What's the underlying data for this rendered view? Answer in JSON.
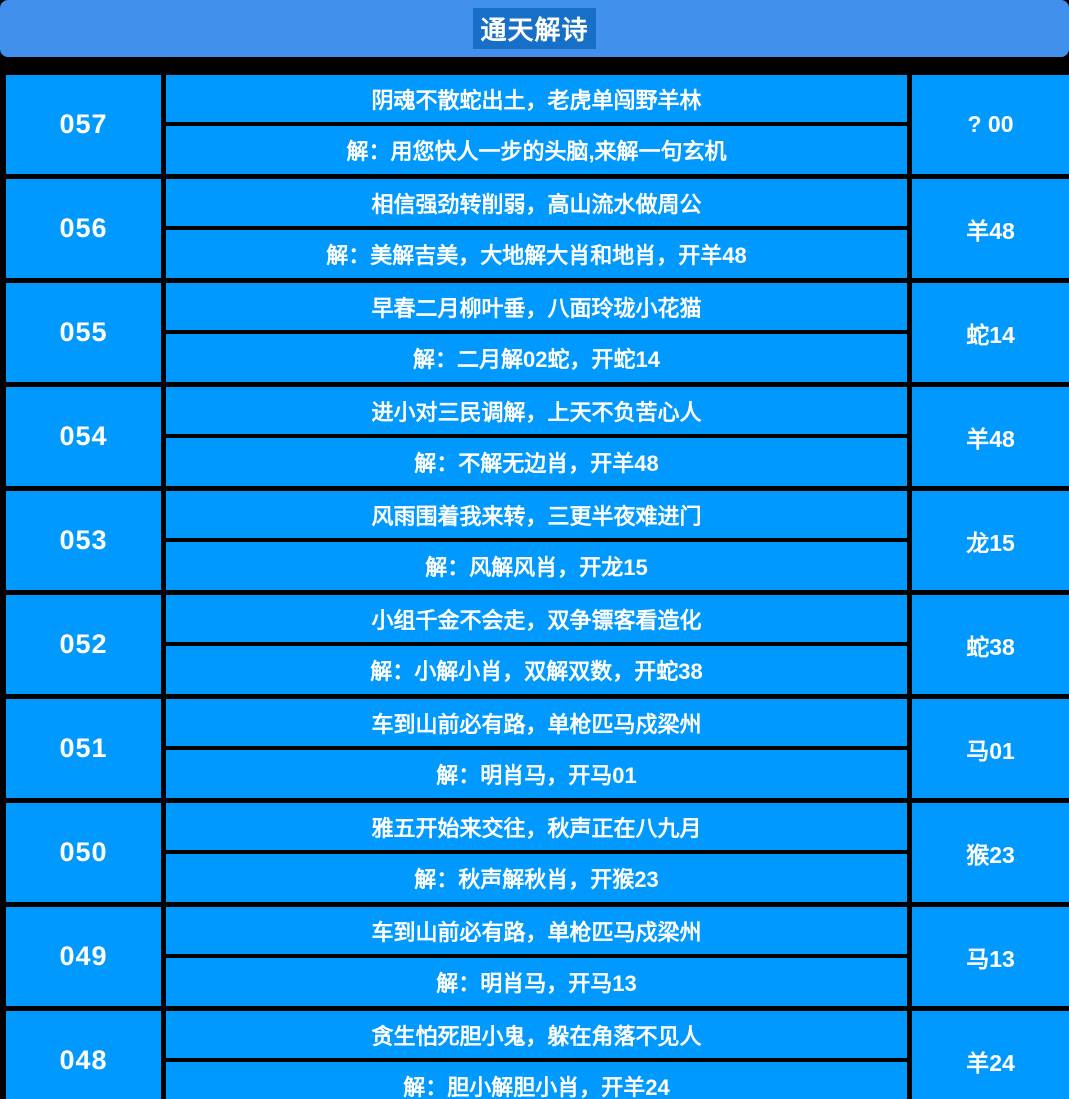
{
  "header": {
    "title": "通天解诗"
  },
  "colors": {
    "page_background": "#000000",
    "header_background": "#4190ec",
    "title_highlight": "#186fc7",
    "cell_background": "#0099ff",
    "text": "#ffffff"
  },
  "table": {
    "rows": [
      {
        "issue": "057",
        "poem": "阴魂不散蛇出土，老虎单闯野羊林",
        "jie": "解：用您快人一步的头脑,来解一句玄机",
        "result": "? 00"
      },
      {
        "issue": "056",
        "poem": "相信强劲转削弱，高山流水做周公",
        "jie": "解：美解吉美，大地解大肖和地肖，开羊48",
        "result": "羊48"
      },
      {
        "issue": "055",
        "poem": "早春二月柳叶垂，八面玲珑小花猫",
        "jie": "解：二月解02蛇，开蛇14",
        "result": "蛇14"
      },
      {
        "issue": "054",
        "poem": "进小对三民调解，上天不负苦心人",
        "jie": "解：不解无边肖，开羊48",
        "result": "羊48"
      },
      {
        "issue": "053",
        "poem": "风雨围着我来转，三更半夜难进门",
        "jie": "解：风解风肖，开龙15",
        "result": "龙15"
      },
      {
        "issue": "052",
        "poem": "小组千金不会走，双争镖客看造化",
        "jie": "解：小解小肖，双解双数，开蛇38",
        "result": "蛇38"
      },
      {
        "issue": "051",
        "poem": "车到山前必有路，单枪匹马戍梁州",
        "jie": "解：明肖马，开马01",
        "result": "马01"
      },
      {
        "issue": "050",
        "poem": "雅五开始来交往，秋声正在八九月",
        "jie": "解：秋声解秋肖，开猴23",
        "result": "猴23"
      },
      {
        "issue": "049",
        "poem": "车到山前必有路，单枪匹马戍梁州",
        "jie": "解：明肖马，开马13",
        "result": "马13"
      },
      {
        "issue": "048",
        "poem": "贪生怕死胆小鬼，躲在角落不见人",
        "jie": "解：胆小解胆小肖，开羊24",
        "result": "羊24"
      }
    ]
  }
}
